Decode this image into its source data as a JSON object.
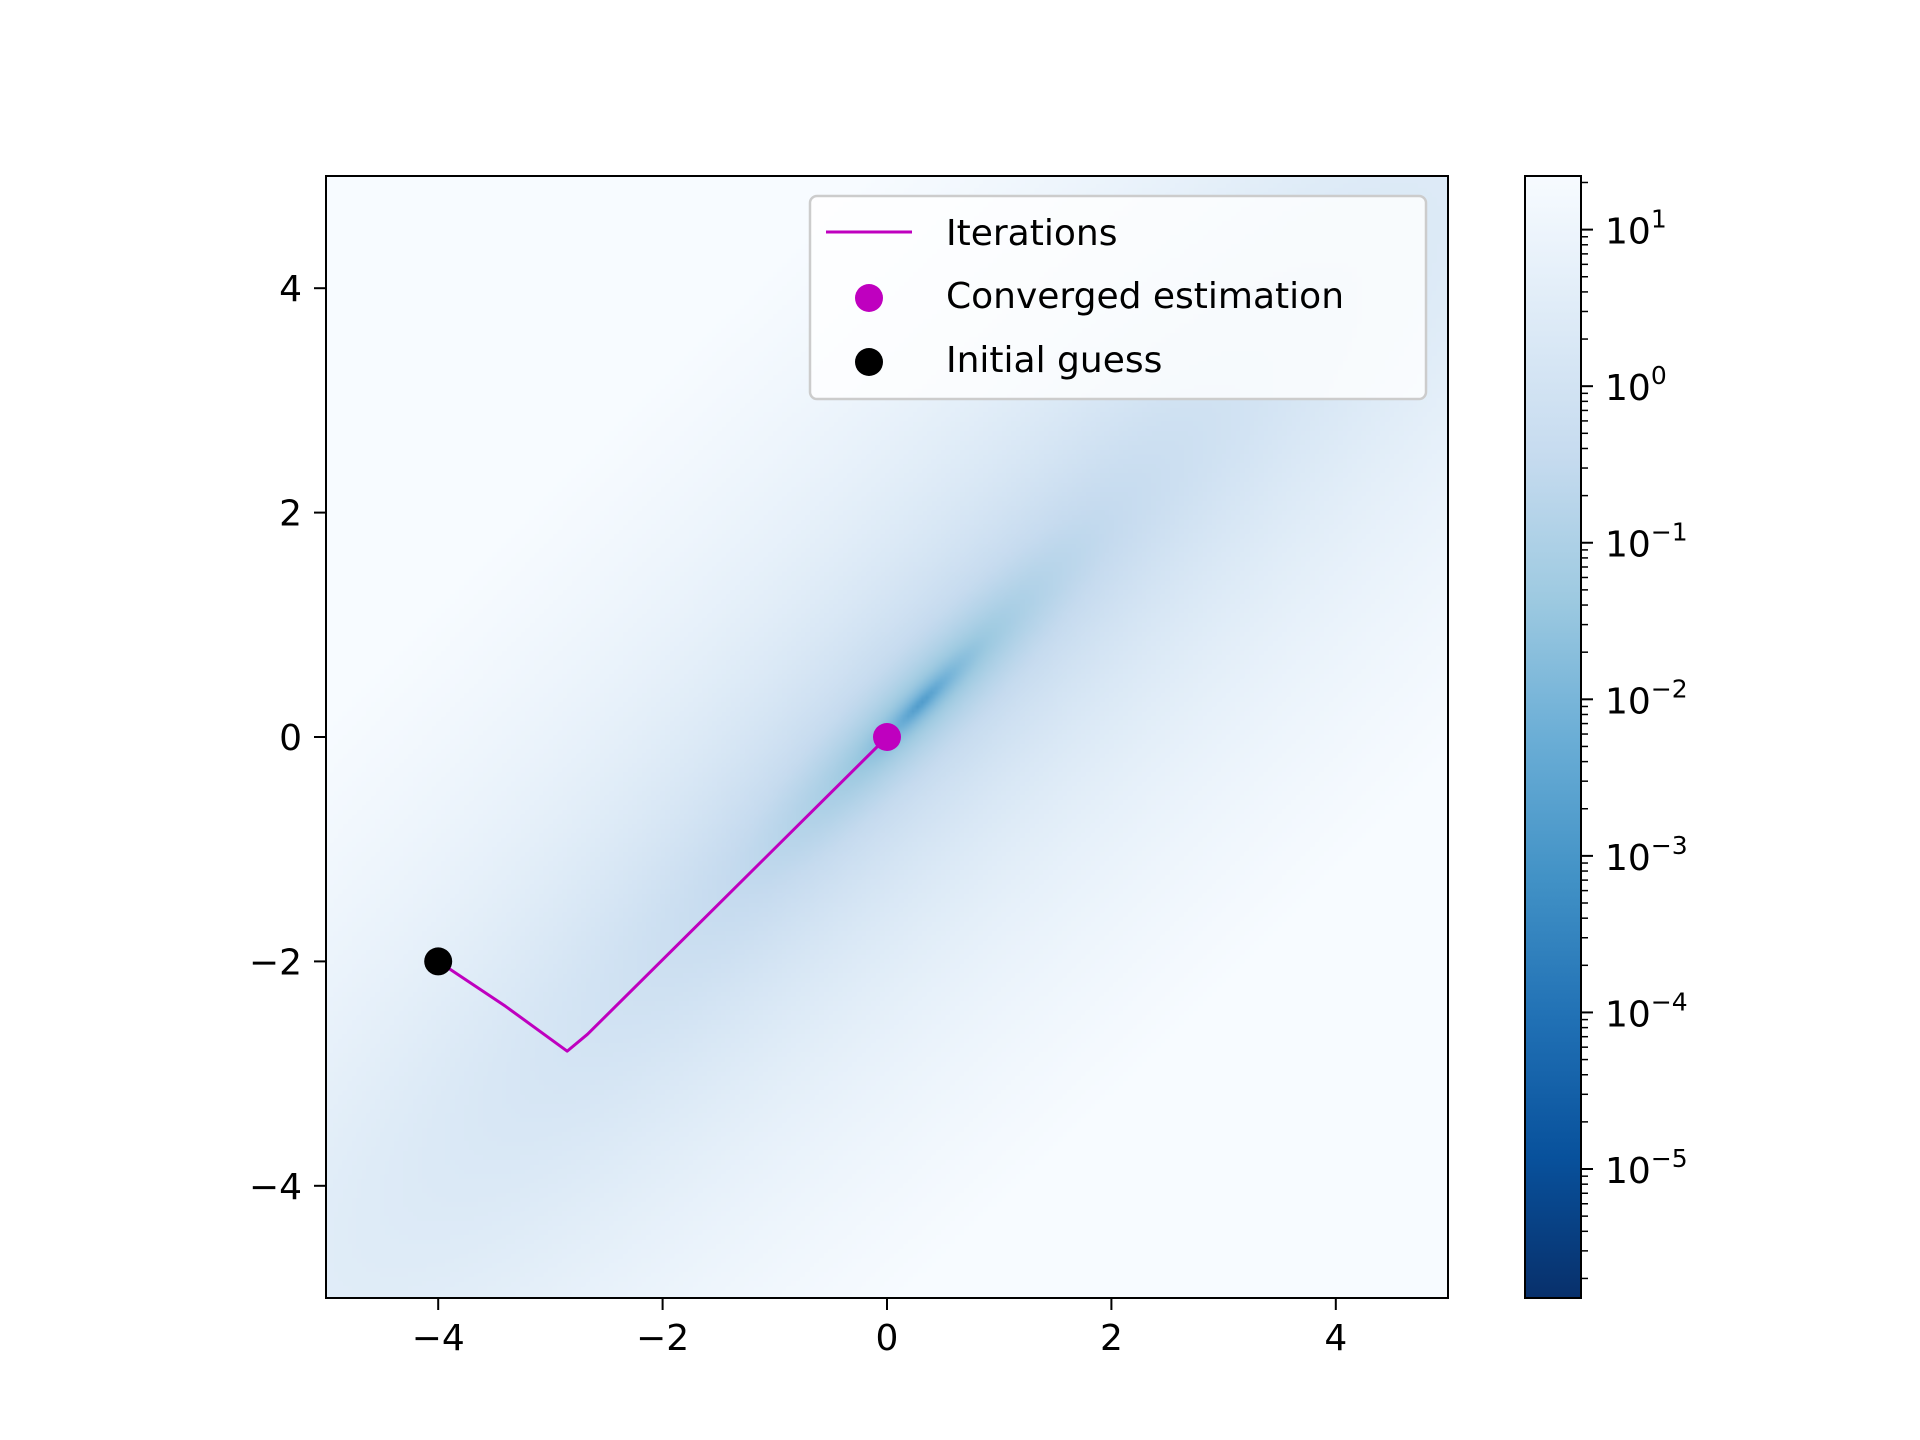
{
  "chart_data": {
    "type": "heatmap",
    "title": "",
    "xlabel": "",
    "ylabel": "",
    "xlim": [
      -5,
      5
    ],
    "ylim": [
      -5,
      5
    ],
    "xticks": [
      -4,
      -2,
      0,
      2,
      4
    ],
    "yticks": [
      -4,
      -2,
      0,
      2,
      4
    ],
    "xtick_labels": [
      "−4",
      "−2",
      "0",
      "2",
      "4"
    ],
    "ytick_labels": [
      "−4",
      "−2",
      "0",
      "2",
      "4"
    ],
    "grid": false,
    "colormap": "Blues_r",
    "colorbar": {
      "scale": "log",
      "range": [
        1.5e-06,
        22
      ],
      "ticks": [
        {
          "value": 10,
          "base": "10",
          "exp": "1"
        },
        {
          "value": 1,
          "base": "10",
          "exp": "0"
        },
        {
          "value": 0.1,
          "base": "10",
          "exp": "−1"
        },
        {
          "value": 0.01,
          "base": "10",
          "exp": "−2"
        },
        {
          "value": 0.001,
          "base": "10",
          "exp": "−3"
        },
        {
          "value": 0.0001,
          "base": "10",
          "exp": "−4"
        },
        {
          "value": 1e-05,
          "base": "10",
          "exp": "−5"
        }
      ]
    },
    "heatmap_minimum": {
      "x": 0.3,
      "y": 0.3
    },
    "series": [
      {
        "name": "Iterations",
        "kind": "line",
        "color": "#bf00bf",
        "x": [
          -4.0,
          -3.4,
          -2.85,
          -2.67,
          0.0
        ],
        "y": [
          -2.0,
          -2.4,
          -2.8,
          -2.65,
          0.0
        ]
      },
      {
        "name": "Converged estimation",
        "kind": "point",
        "color": "#bf00bf",
        "x": [
          0.0
        ],
        "y": [
          0.0
        ]
      },
      {
        "name": "Initial guess",
        "kind": "point",
        "color": "#000000",
        "x": [
          -4.0
        ],
        "y": [
          -2.0
        ]
      }
    ],
    "legend": {
      "position": "upper-right",
      "entries": [
        "Iterations",
        "Converged estimation",
        "Initial guess"
      ]
    }
  }
}
